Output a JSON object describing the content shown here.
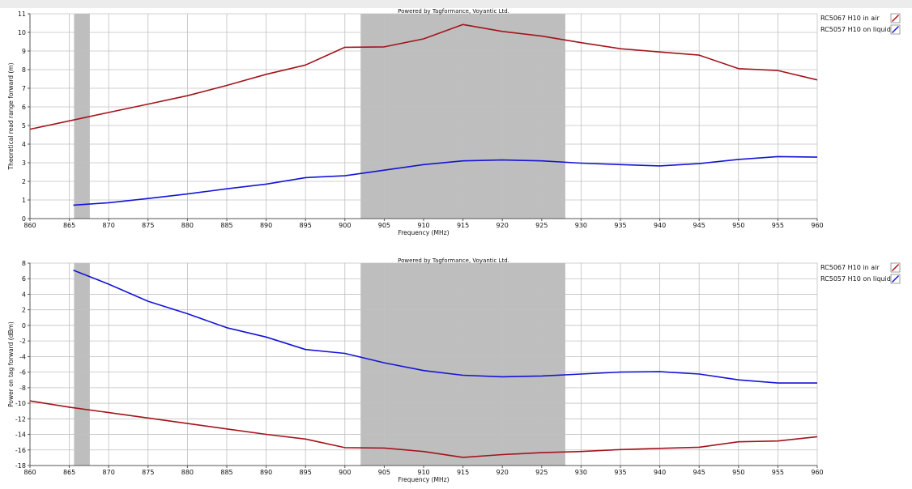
{
  "colors": {
    "series_air": "#a3141c",
    "series_liquid": "#1414d8",
    "band": "#bebebe",
    "grid": "#c0c0c0"
  },
  "chart_data": [
    {
      "type": "line",
      "credit": "Powered by Tagformance, Voyantic Ltd.",
      "xlabel": "Frequency (MHz)",
      "ylabel": "Theoretical read range forward (m)",
      "xlim": [
        860,
        960
      ],
      "ylim": [
        0,
        11
      ],
      "xticks": [
        860,
        865,
        870,
        875,
        880,
        885,
        890,
        895,
        900,
        905,
        910,
        915,
        920,
        925,
        930,
        935,
        940,
        945,
        950,
        955,
        960
      ],
      "yticks": [
        0,
        1,
        2,
        3,
        4,
        5,
        6,
        7,
        8,
        9,
        10,
        11
      ],
      "grid": true,
      "shaded_bands": [
        [
          865.6,
          867.6
        ],
        [
          902,
          928
        ]
      ],
      "legend_position": "right",
      "series": [
        {
          "name": "RC5067 H10 in air",
          "color_key": "series_air",
          "x": [
            860,
            865,
            870,
            875,
            880,
            885,
            890,
            895,
            900,
            905,
            910,
            915,
            920,
            925,
            930,
            935,
            940,
            945,
            950,
            955,
            960
          ],
          "y": [
            4.8,
            5.25,
            5.7,
            6.15,
            6.6,
            7.15,
            7.75,
            8.25,
            9.2,
            9.22,
            9.65,
            10.42,
            10.05,
            9.8,
            9.45,
            9.12,
            8.95,
            8.78,
            8.05,
            7.95,
            7.45
          ]
        },
        {
          "name": "RC5057 H10 on liquid",
          "color_key": "series_liquid",
          "x": [
            865.5,
            870,
            875,
            880,
            885,
            890,
            895,
            900,
            905,
            910,
            915,
            920,
            925,
            930,
            935,
            940,
            945,
            950,
            955,
            960
          ],
          "y": [
            0.72,
            0.85,
            1.08,
            1.32,
            1.6,
            1.85,
            2.2,
            2.3,
            2.6,
            2.9,
            3.1,
            3.15,
            3.1,
            2.98,
            2.9,
            2.83,
            2.95,
            3.18,
            3.33,
            3.3
          ]
        }
      ]
    },
    {
      "type": "line",
      "credit": "Powered by Tagformance, Voyantic Ltd.",
      "xlabel": "Frequency (MHz)",
      "ylabel": "Power on tag forward (dBm)",
      "xlim": [
        860,
        960
      ],
      "ylim": [
        -18,
        8
      ],
      "xticks": [
        860,
        865,
        870,
        875,
        880,
        885,
        890,
        895,
        900,
        905,
        910,
        915,
        920,
        925,
        930,
        935,
        940,
        945,
        950,
        955,
        960
      ],
      "yticks": [
        -18,
        -16,
        -14,
        -12,
        -10,
        -8,
        -6,
        -4,
        -2,
        0,
        2,
        4,
        6,
        8
      ],
      "grid": true,
      "shaded_bands": [
        [
          865.6,
          867.6
        ],
        [
          902,
          928
        ]
      ],
      "legend_position": "right",
      "series": [
        {
          "name": "RC5067 H10 in air",
          "color_key": "series_air",
          "x": [
            860,
            865,
            870,
            875,
            880,
            885,
            890,
            895,
            900,
            905,
            910,
            915,
            920,
            925,
            930,
            935,
            940,
            945,
            950,
            955,
            960
          ],
          "y": [
            -9.7,
            -10.5,
            -11.2,
            -11.9,
            -12.6,
            -13.3,
            -14.0,
            -14.6,
            -15.7,
            -15.75,
            -16.2,
            -16.95,
            -16.6,
            -16.35,
            -16.2,
            -15.95,
            -15.8,
            -15.65,
            -14.95,
            -14.85,
            -14.3
          ]
        },
        {
          "name": "RC5057 H10 on liquid",
          "color_key": "series_liquid",
          "x": [
            865.5,
            870,
            875,
            880,
            885,
            890,
            895,
            900,
            905,
            910,
            915,
            920,
            925,
            930,
            935,
            940,
            945,
            950,
            955,
            960
          ],
          "y": [
            7.1,
            5.3,
            3.1,
            1.5,
            -0.3,
            -1.5,
            -3.1,
            -3.6,
            -4.8,
            -5.8,
            -6.4,
            -6.6,
            -6.5,
            -6.25,
            -6.0,
            -5.95,
            -6.25,
            -7.0,
            -7.4,
            -7.4
          ]
        }
      ]
    }
  ]
}
